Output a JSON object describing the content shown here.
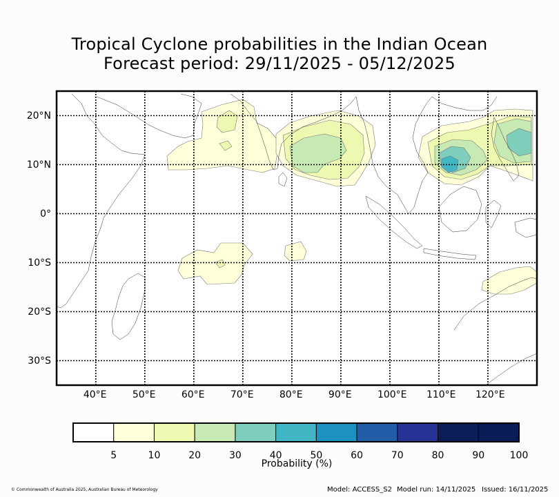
{
  "title": {
    "line1": "Tropical Cyclone probabilities in the Indian Ocean",
    "line2": "Forecast period: 29/11/2025 - 05/12/2025"
  },
  "map": {
    "lon_range": [
      32,
      130
    ],
    "lat_range": [
      -35,
      25
    ],
    "lon_ticks": [
      "40°E",
      "50°E",
      "60°E",
      "70°E",
      "80°E",
      "90°E",
      "100°E",
      "110°E",
      "120°E"
    ],
    "lat_ticks": [
      "20°N",
      "10°N",
      "0°",
      "10°S",
      "20°S",
      "30°S"
    ],
    "lon_tick_values": [
      40,
      50,
      60,
      70,
      80,
      90,
      100,
      110,
      120
    ],
    "lat_tick_values": [
      20,
      10,
      0,
      -10,
      -20,
      -30
    ],
    "grid": "dotted",
    "probability_regions": [
      {
        "area": "Arabian Sea",
        "level_percent": "5-20"
      },
      {
        "area": "Bay of Bengal",
        "level_percent": "5-30"
      },
      {
        "area": "South China Sea / Philippines",
        "level_percent": "5-50"
      },
      {
        "area": "South Indian Ocean west",
        "level_percent": "5-10"
      },
      {
        "area": "South Indian Ocean near 80E",
        "level_percent": "5-10"
      },
      {
        "area": "Northern Australia",
        "level_percent": "5-10"
      }
    ]
  },
  "colorbar": {
    "title": "Probability (%)",
    "tick_labels": [
      "5",
      "10",
      "20",
      "30",
      "40",
      "50",
      "60",
      "70",
      "80",
      "90",
      "100"
    ],
    "colors": [
      "#ffffff",
      "#ffffd9",
      "#edf8b1",
      "#c7e9b4",
      "#7fcdbb",
      "#41b6c4",
      "#1d91c0",
      "#225ea8",
      "#253494",
      "#0c1e5a",
      "#081d58"
    ]
  },
  "footer": {
    "copyright": "© Commonwealth of Australia 2025, Australian Bureau of Meteorology",
    "model": "Model: ACCESS_S2",
    "model_run": "Model run: 14/11/2025",
    "issued": "Issued: 16/11/2025"
  }
}
